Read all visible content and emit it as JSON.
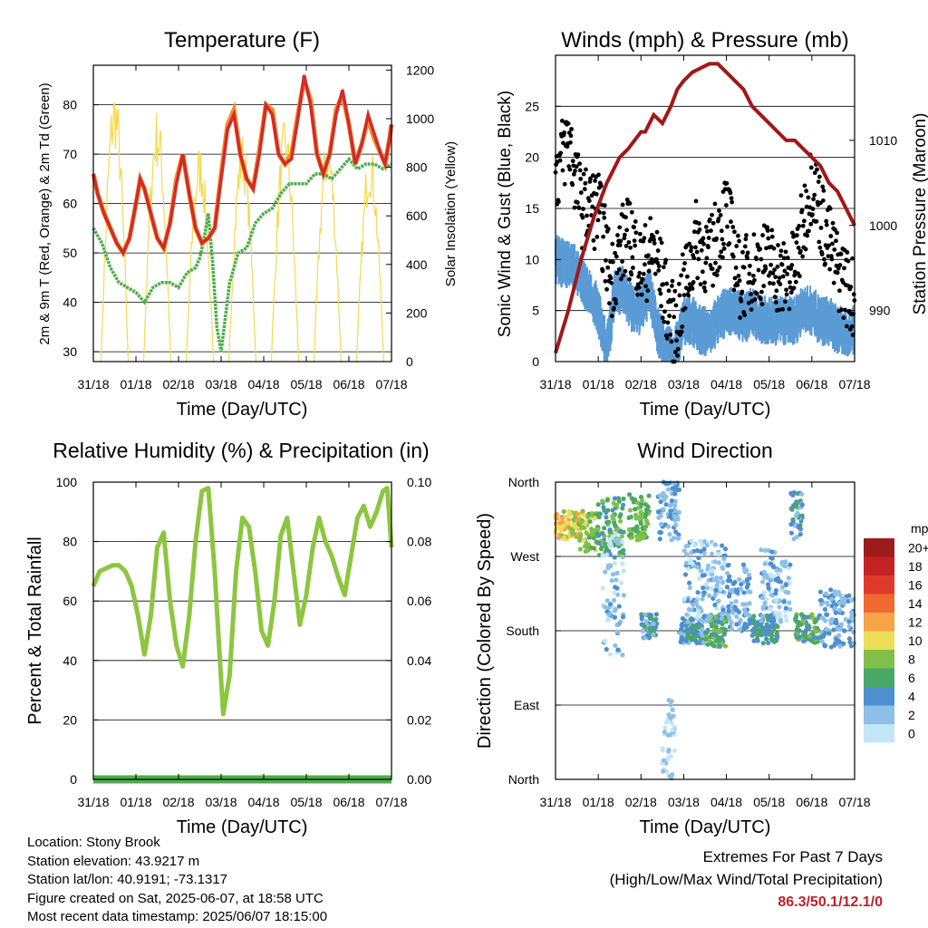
{
  "info": {
    "location": "Location: Stony Brook",
    "elevation": "Station elevation: 43.9217 m",
    "latlon": "Station lat/lon: 40.9191; -73.1317",
    "created": "Figure created on Sat, 2025-06-07, at 18:58 UTC",
    "recent": "Most recent data timestamp: 2025/06/07 18:15:00"
  },
  "extremes": {
    "title": "Extremes For Past 7 Days",
    "subtitle": "(High/Low/Max Wind/Total Precipitation)",
    "values": "86.3/50.1/12.1/0"
  },
  "colors": {
    "temp2m": "#d42a2a",
    "temp9m": "#f28c28",
    "dewpoint": "#4cae4c",
    "solar": "#f5d94e",
    "wind": "#5b9bd5",
    "gust": "#000000",
    "pressure": "#a01818",
    "rh": "#8cc63f",
    "precip": "#4cae4c"
  },
  "chart_data": [
    {
      "type": "line",
      "title": "Temperature (F)",
      "xlabel": "Time (Day/UTC)",
      "ylabel": "2m & 9m T (Red, Orange) & 2m Td (Green)",
      "ylabel_right": "Solar Insolation (Yellow)",
      "x_ticks": [
        "31/18",
        "01/18",
        "02/18",
        "03/18",
        "04/18",
        "05/18",
        "06/18",
        "07/18"
      ],
      "xlim": [
        0,
        7
      ],
      "ylim": [
        28,
        88
      ],
      "y_ticks": [
        30,
        40,
        50,
        60,
        70,
        80
      ],
      "ylim_right": [
        0,
        1220
      ],
      "y_ticks_right": [
        0,
        200,
        400,
        600,
        800,
        1000,
        1200
      ],
      "grid": true,
      "series": [
        {
          "x": [
            0,
            0.1,
            0.25,
            0.4,
            0.55,
            0.7,
            0.85,
            1.0,
            1.1,
            1.2,
            1.35,
            1.5,
            1.65,
            1.8,
            1.95,
            2.1,
            2.25,
            2.4,
            2.55,
            2.7,
            2.85,
            3.0,
            3.15,
            3.3,
            3.45,
            3.6,
            3.75,
            3.9,
            4.05,
            4.2,
            4.35,
            4.5,
            4.65,
            4.8,
            4.95,
            5.1,
            5.25,
            5.4,
            5.55,
            5.7,
            5.85,
            6.0,
            6.15,
            6.3,
            6.45,
            6.6,
            6.75,
            6.85,
            6.95,
            7.0
          ],
          "values": [
            66,
            62,
            58,
            55,
            52,
            50,
            53,
            60,
            65,
            63,
            58,
            53,
            51,
            56,
            64,
            70,
            62,
            55,
            52,
            53,
            55,
            65,
            75,
            78,
            70,
            65,
            63,
            70,
            80,
            78,
            70,
            68,
            69,
            77,
            86,
            80,
            70,
            66,
            70,
            78,
            83,
            76,
            68,
            72,
            78,
            74,
            70,
            68,
            73,
            76
          ]
        },
        {
          "x": [
            0,
            0.1,
            0.25,
            0.4,
            0.55,
            0.7,
            0.85,
            1.0,
            1.1,
            1.2,
            1.35,
            1.5,
            1.65,
            1.8,
            1.95,
            2.1,
            2.25,
            2.4,
            2.55,
            2.7,
            2.85,
            3.0,
            3.15,
            3.3,
            3.45,
            3.6,
            3.75,
            3.9,
            4.05,
            4.2,
            4.35,
            4.5,
            4.65,
            4.8,
            4.95,
            5.1,
            5.25,
            5.4,
            5.55,
            5.7,
            5.85,
            6.0,
            6.15,
            6.3,
            6.45,
            6.6,
            6.75,
            6.85,
            6.95,
            7.0
          ],
          "values": [
            66,
            62,
            58,
            55,
            52,
            50,
            53,
            60,
            65,
            63,
            58,
            53,
            51,
            56,
            65,
            70,
            62,
            55,
            52,
            53,
            55,
            66,
            76,
            79,
            70,
            65,
            63,
            71,
            80,
            79,
            70,
            68,
            70,
            78,
            85,
            81,
            70,
            66,
            70,
            79,
            82,
            76,
            68,
            72,
            77,
            73,
            70,
            68,
            73,
            76
          ]
        },
        {
          "x": [
            0,
            0.2,
            0.4,
            0.6,
            0.8,
            1.0,
            1.2,
            1.4,
            1.6,
            1.8,
            2.0,
            2.2,
            2.4,
            2.5,
            2.6,
            2.7,
            2.8,
            2.9,
            3.0,
            3.2,
            3.4,
            3.6,
            3.8,
            4.0,
            4.2,
            4.4,
            4.6,
            4.8,
            5.0,
            5.2,
            5.4,
            5.6,
            5.8,
            6.0,
            6.2,
            6.4,
            6.6,
            6.8,
            7.0
          ],
          "values": [
            55,
            52,
            47,
            44,
            43,
            42,
            40,
            43,
            44,
            44,
            43,
            46,
            47,
            49,
            53,
            58,
            48,
            35,
            30,
            44,
            50,
            51,
            56,
            58,
            59,
            62,
            64,
            64,
            64,
            66,
            66,
            65,
            67,
            69,
            67,
            68,
            68,
            67,
            68
          ]
        },
        {
          "x": [
            0.05,
            0.15,
            0.25,
            0.3,
            0.35,
            0.38,
            0.42,
            0.5,
            0.55,
            0.62,
            0.68,
            0.72,
            0.78,
            0.85,
            1.0,
            1.2,
            1.45,
            1.6,
            1.8,
            2.1,
            2.35,
            2.5,
            2.7,
            2.85,
            3.05,
            3.3,
            3.55,
            3.85,
            4.05,
            4.3,
            4.55,
            4.85,
            5.05,
            5.3,
            5.55,
            5.85,
            6.05,
            6.3,
            6.55,
            6.85,
            7.0
          ],
          "values": [
            500,
            200,
            0,
            300,
            1150,
            900,
            1100,
            400,
            950,
            0,
            600,
            700,
            250,
            0,
            0,
            0,
            0,
            0,
            0,
            0,
            0,
            0,
            0,
            0,
            0,
            0,
            0,
            0,
            0,
            0,
            0,
            0,
            0,
            0,
            0,
            0,
            0,
            0,
            0,
            0,
            0
          ]
        }
      ],
      "solar_peaks": [
        {
          "center": 0.5,
          "peak": 1150
        },
        {
          "center": 1.5,
          "peak": 1050
        },
        {
          "center": 2.5,
          "peak": 900
        },
        {
          "center": 3.5,
          "peak": 950
        },
        {
          "center": 4.5,
          "peak": 1000
        },
        {
          "center": 5.5,
          "peak": 950
        },
        {
          "center": 6.5,
          "peak": 900
        }
      ]
    },
    {
      "type": "scatter",
      "title": "Winds (mph) & Pressure (mb)",
      "xlabel": "Time (Day/UTC)",
      "ylabel": "Sonic Wind & Gust (Blue, Black)",
      "ylabel_right": "Station Pressure (Maroon)",
      "x_ticks": [
        "31/18",
        "01/18",
        "02/18",
        "03/18",
        "04/18",
        "05/18",
        "06/18",
        "07/18"
      ],
      "xlim": [
        0,
        7
      ],
      "ylim": [
        0,
        30
      ],
      "y_ticks": [
        0,
        5,
        10,
        15,
        20,
        25
      ],
      "ylim_right": [
        984,
        1020
      ],
      "y_ticks_right": [
        990,
        1000,
        1010
      ],
      "grid": true,
      "pressure": {
        "x": [
          0,
          0.3,
          0.6,
          0.9,
          1.2,
          1.5,
          1.7,
          1.85,
          2.0,
          2.1,
          2.3,
          2.5,
          2.7,
          2.85,
          3.0,
          3.2,
          3.4,
          3.6,
          3.8,
          4.0,
          4.2,
          4.4,
          4.6,
          4.8,
          5.0,
          5.2,
          5.4,
          5.6,
          5.8,
          6.0,
          6.2,
          6.4,
          6.6,
          6.8,
          7.0
        ],
        "values": [
          985,
          990,
          996,
          1001,
          1005,
          1008,
          1009,
          1010,
          1011,
          1011,
          1013,
          1012,
          1014,
          1016,
          1017,
          1018,
          1018.5,
          1019,
          1019,
          1018,
          1017,
          1016,
          1014,
          1013,
          1012,
          1011,
          1010,
          1010,
          1009,
          1008,
          1007,
          1005,
          1004,
          1002,
          1000
        ]
      },
      "wind": {
        "x": [
          0,
          0.5,
          1.0,
          1.2,
          1.4,
          1.6,
          1.8,
          2.0,
          2.2,
          2.4,
          2.6,
          2.8,
          3.0,
          3.2,
          3.4,
          3.6,
          3.8,
          4.0,
          4.2,
          4.4,
          4.6,
          4.8,
          5.0,
          5.2,
          5.4,
          5.6,
          5.8,
          6.0,
          6.2,
          6.4,
          6.6,
          6.8,
          7.0
        ],
        "values": [
          10,
          9,
          5,
          1,
          7,
          7,
          5,
          5,
          7,
          3,
          1,
          1,
          4,
          4,
          3,
          3,
          4,
          5,
          5,
          4,
          5,
          4,
          4,
          4,
          4,
          4,
          5,
          5,
          4,
          4,
          3,
          3,
          3
        ]
      },
      "gust": {
        "x": [
          0,
          0.3,
          0.6,
          1.0,
          1.3,
          1.6,
          1.8,
          2.0,
          2.3,
          2.6,
          2.8,
          3.0,
          3.3,
          3.6,
          4.0,
          4.3,
          4.6,
          5.0,
          5.3,
          5.6,
          6.0,
          6.3,
          6.6,
          7.0
        ],
        "values": [
          18,
          22,
          15,
          15,
          8,
          12,
          12,
          9,
          11,
          6,
          3,
          7,
          12,
          10,
          15,
          8,
          9,
          10,
          8,
          9,
          18,
          13,
          9,
          6
        ]
      }
    },
    {
      "type": "line",
      "title": "Relative Humidity (%) & Precipitation (in)",
      "xlabel": "Time (Day/UTC)",
      "ylabel": "Percent & Total Rainfall",
      "x_ticks": [
        "31/18",
        "01/18",
        "02/18",
        "03/18",
        "04/18",
        "05/18",
        "06/18",
        "07/18"
      ],
      "xlim": [
        0,
        7
      ],
      "ylim": [
        0,
        100
      ],
      "y_ticks": [
        0,
        20,
        40,
        60,
        80,
        100
      ],
      "ylim_right": [
        0,
        0.1
      ],
      "y_ticks_right": [
        "0.00",
        "0.02",
        "0.04",
        "0.06",
        "0.08",
        "0.10"
      ],
      "grid": true,
      "series": [
        {
          "x": [
            0,
            0.15,
            0.3,
            0.45,
            0.6,
            0.75,
            0.9,
            1.05,
            1.2,
            1.35,
            1.5,
            1.65,
            1.8,
            1.95,
            2.1,
            2.25,
            2.4,
            2.55,
            2.7,
            2.85,
            2.95,
            3.05,
            3.2,
            3.35,
            3.5,
            3.65,
            3.8,
            3.95,
            4.1,
            4.25,
            4.4,
            4.55,
            4.7,
            4.85,
            5.0,
            5.15,
            5.3,
            5.45,
            5.6,
            5.75,
            5.9,
            6.05,
            6.2,
            6.35,
            6.5,
            6.65,
            6.8,
            6.9,
            7.0
          ],
          "values": [
            65,
            70,
            71,
            72,
            72,
            70,
            65,
            55,
            42,
            55,
            78,
            83,
            60,
            45,
            38,
            55,
            80,
            97,
            98,
            70,
            45,
            22,
            35,
            70,
            88,
            85,
            70,
            50,
            45,
            60,
            82,
            88,
            70,
            52,
            62,
            78,
            88,
            80,
            75,
            68,
            62,
            75,
            88,
            92,
            85,
            90,
            97,
            98,
            78
          ]
        },
        {
          "x": [
            0,
            7
          ],
          "values": [
            0,
            0
          ]
        }
      ]
    },
    {
      "type": "scatter",
      "title": "Wind Direction",
      "xlabel": "Time (Day/UTC)",
      "ylabel": "Direction (Colored By Speed)",
      "x_ticks": [
        "31/18",
        "01/18",
        "02/18",
        "03/18",
        "04/18",
        "05/18",
        "06/18",
        "07/18"
      ],
      "y_ticks": [
        "North",
        "West",
        "South",
        "East",
        "North"
      ],
      "ylim": [
        0,
        360
      ],
      "grid": true,
      "legend": {
        "title": "mph",
        "labels": [
          "20+",
          "18",
          "16",
          "14",
          "12",
          "10",
          "8",
          "6",
          "4",
          "2",
          "0"
        ],
        "colors": [
          "#9e1b1b",
          "#c42323",
          "#de3a2c",
          "#ee6a30",
          "#f7a347",
          "#ebdc5a",
          "#80c04a",
          "#4aa866",
          "#4e8fcf",
          "#8cc0e8",
          "#c2e6f6"
        ]
      },
      "clusters": [
        {
          "x0": 0.0,
          "x1": 0.6,
          "d0": 290,
          "d1": 325,
          "speed": 10
        },
        {
          "x0": 0.55,
          "x1": 1.0,
          "d0": 275,
          "d1": 325,
          "speed": 8
        },
        {
          "x0": 1.0,
          "x1": 1.6,
          "d0": 270,
          "d1": 345,
          "speed": 6
        },
        {
          "x0": 1.1,
          "x1": 1.6,
          "d0": 150,
          "d1": 300,
          "speed": 2
        },
        {
          "x0": 1.7,
          "x1": 2.2,
          "d0": 290,
          "d1": 345,
          "speed": 7
        },
        {
          "x0": 2.0,
          "x1": 2.4,
          "d0": 170,
          "d1": 200,
          "speed": 4
        },
        {
          "x0": 2.4,
          "x1": 2.9,
          "d0": 290,
          "d1": 360,
          "speed": 3
        },
        {
          "x0": 2.5,
          "x1": 2.8,
          "d0": 0,
          "d1": 100,
          "speed": 1
        },
        {
          "x0": 2.9,
          "x1": 3.5,
          "d0": 165,
          "d1": 195,
          "speed": 4
        },
        {
          "x0": 3.5,
          "x1": 4.0,
          "d0": 160,
          "d1": 200,
          "speed": 6
        },
        {
          "x0": 3.0,
          "x1": 4.0,
          "d0": 190,
          "d1": 290,
          "speed": 2
        },
        {
          "x0": 4.0,
          "x1": 4.6,
          "d0": 180,
          "d1": 260,
          "speed": 3
        },
        {
          "x0": 4.6,
          "x1": 5.2,
          "d0": 165,
          "d1": 200,
          "speed": 5
        },
        {
          "x0": 4.8,
          "x1": 5.5,
          "d0": 190,
          "d1": 280,
          "speed": 2
        },
        {
          "x0": 5.5,
          "x1": 5.8,
          "d0": 290,
          "d1": 350,
          "speed": 4
        },
        {
          "x0": 5.6,
          "x1": 6.2,
          "d0": 165,
          "d1": 200,
          "speed": 6
        },
        {
          "x0": 6.2,
          "x1": 7.0,
          "d0": 160,
          "d1": 230,
          "speed": 3
        }
      ]
    }
  ]
}
